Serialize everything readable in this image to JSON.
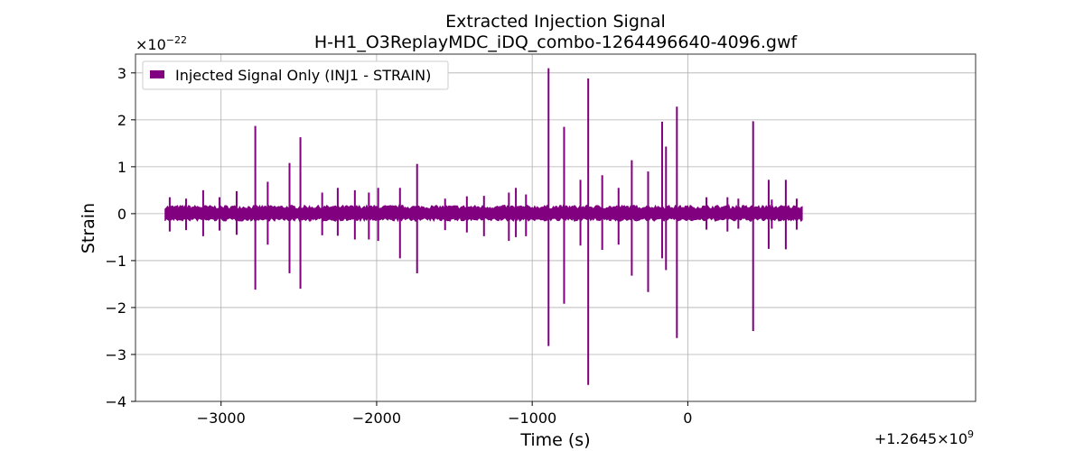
{
  "chart_data": {
    "type": "line",
    "title_line1": "Extracted Injection Signal",
    "title_line2": "H-H1_O3ReplayMDC_iDQ_combo-1264496640-4096.gwf",
    "xlabel": "Time (s)",
    "ylabel": "Strain",
    "y_scale_label": "×10",
    "y_scale_exp": "−22",
    "x_offset_label": "+1.2645×10",
    "x_offset_exp": "9",
    "xlim": [
      -3550,
      1850
    ],
    "ylim": [
      -4,
      3.4
    ],
    "x_ticks": [
      {
        "value": -3000,
        "label": "−3000"
      },
      {
        "value": -2000,
        "label": "−2000"
      },
      {
        "value": -1000,
        "label": "−1000"
      },
      {
        "value": 0,
        "label": "0"
      }
    ],
    "y_ticks": [
      {
        "value": 3,
        "label": "3"
      },
      {
        "value": 2,
        "label": "2"
      },
      {
        "value": 1,
        "label": "1"
      },
      {
        "value": 0,
        "label": "0"
      },
      {
        "value": -1,
        "label": "−1"
      },
      {
        "value": -2,
        "label": "−2"
      },
      {
        "value": -3,
        "label": "−3"
      },
      {
        "value": -4,
        "label": "−4"
      }
    ],
    "grid": true,
    "legend_position": "top-left",
    "series": [
      {
        "name": "Injected Signal Only (INJ1 - STRAIN)",
        "color": "#800080",
        "band": {
          "x_start": -3360,
          "x_end": 740,
          "upper": 0.18,
          "lower": -0.16
        },
        "spikes": [
          {
            "x": -3330,
            "top": 0.35,
            "bottom": -0.38
          },
          {
            "x": -3225,
            "top": 0.32,
            "bottom": -0.35
          },
          {
            "x": -3115,
            "top": 0.5,
            "bottom": -0.48
          },
          {
            "x": -3010,
            "top": 0.35,
            "bottom": -0.36
          },
          {
            "x": -2900,
            "top": 0.48,
            "bottom": -0.45
          },
          {
            "x": -2780,
            "top": 1.87,
            "bottom": -1.62
          },
          {
            "x": -2700,
            "top": 0.68,
            "bottom": -0.66
          },
          {
            "x": -2560,
            "top": 1.08,
            "bottom": -1.27
          },
          {
            "x": -2490,
            "top": 1.63,
            "bottom": -1.6
          },
          {
            "x": -2350,
            "top": 0.45,
            "bottom": -0.46
          },
          {
            "x": -2250,
            "top": 0.55,
            "bottom": -0.47
          },
          {
            "x": -2140,
            "top": 0.5,
            "bottom": -0.55
          },
          {
            "x": -2050,
            "top": 0.45,
            "bottom": -0.55
          },
          {
            "x": -1990,
            "top": 0.55,
            "bottom": -0.58
          },
          {
            "x": -1850,
            "top": 0.55,
            "bottom": -0.95
          },
          {
            "x": -1740,
            "top": 1.06,
            "bottom": -1.27
          },
          {
            "x": -1560,
            "top": 0.32,
            "bottom": -0.35
          },
          {
            "x": -1420,
            "top": 0.37,
            "bottom": -0.4
          },
          {
            "x": -1310,
            "top": 0.38,
            "bottom": -0.48
          },
          {
            "x": -1150,
            "top": 0.45,
            "bottom": -0.58
          },
          {
            "x": -1105,
            "top": 0.55,
            "bottom": -0.5
          },
          {
            "x": -1040,
            "top": 0.41,
            "bottom": -0.48
          },
          {
            "x": -895,
            "top": 3.1,
            "bottom": -2.82
          },
          {
            "x": -795,
            "top": 1.85,
            "bottom": -1.92
          },
          {
            "x": -690,
            "top": 0.72,
            "bottom": -0.68
          },
          {
            "x": -640,
            "top": 2.88,
            "bottom": -3.65
          },
          {
            "x": -550,
            "top": 0.82,
            "bottom": -0.77
          },
          {
            "x": -445,
            "top": 0.55,
            "bottom": -0.66
          },
          {
            "x": -360,
            "top": 1.14,
            "bottom": -1.32
          },
          {
            "x": -255,
            "top": 0.9,
            "bottom": -1.67
          },
          {
            "x": -165,
            "top": 1.96,
            "bottom": -0.95
          },
          {
            "x": -140,
            "top": 1.43,
            "bottom": -1.2
          },
          {
            "x": -70,
            "top": 2.28,
            "bottom": -2.65
          },
          {
            "x": 120,
            "top": 0.35,
            "bottom": -0.34
          },
          {
            "x": 255,
            "top": 0.35,
            "bottom": -0.38
          },
          {
            "x": 325,
            "top": 0.32,
            "bottom": -0.32
          },
          {
            "x": 420,
            "top": 1.97,
            "bottom": -2.5
          },
          {
            "x": 520,
            "top": 0.72,
            "bottom": -0.75
          },
          {
            "x": 540,
            "top": 0.3,
            "bottom": -0.32
          },
          {
            "x": 630,
            "top": 0.72,
            "bottom": -0.76
          },
          {
            "x": 700,
            "top": 0.32,
            "bottom": -0.34
          }
        ]
      }
    ]
  }
}
